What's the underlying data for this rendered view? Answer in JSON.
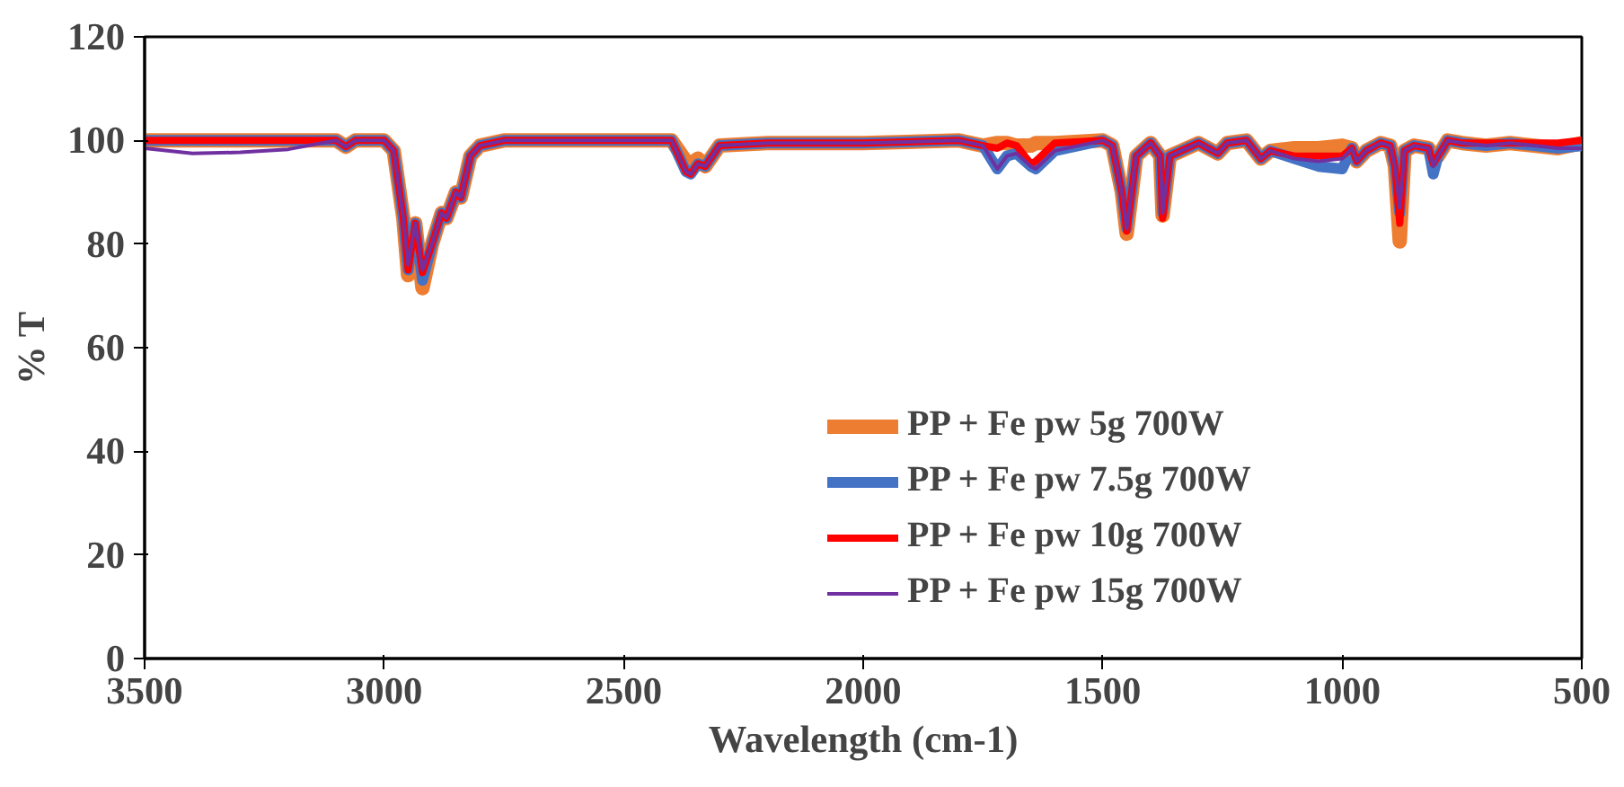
{
  "chart_data": {
    "type": "line",
    "xlabel": "Wavelength (cm-1)",
    "ylabel": "% T",
    "x": [
      3500,
      3400,
      3300,
      3200,
      3100,
      3080,
      3060,
      3000,
      2980,
      2960,
      2950,
      2935,
      2920,
      2900,
      2880,
      2870,
      2850,
      2840,
      2820,
      2800,
      2750,
      2700,
      2500,
      2400,
      2370,
      2360,
      2345,
      2330,
      2300,
      2200,
      2000,
      1800,
      1750,
      1720,
      1700,
      1680,
      1650,
      1640,
      1600,
      1500,
      1480,
      1460,
      1450,
      1430,
      1400,
      1380,
      1375,
      1360,
      1300,
      1260,
      1240,
      1200,
      1170,
      1150,
      1100,
      1050,
      1000,
      980,
      970,
      950,
      920,
      900,
      890,
      880,
      870,
      850,
      820,
      810,
      800,
      780,
      750,
      700,
      650,
      600,
      550,
      500
    ],
    "series": [
      {
        "name": "PP + Fe pw 5g 700W",
        "color": "#ed7d31",
        "values": [
          100,
          100,
          100,
          100,
          100,
          98.8,
          100,
          100,
          98,
          85,
          74,
          84,
          71.5,
          80,
          86,
          85,
          90,
          89,
          97,
          99,
          100,
          100,
          100,
          100,
          96,
          95.5,
          96.5,
          95,
          99,
          99.5,
          99.5,
          100,
          99,
          99.5,
          99.5,
          99,
          99,
          99.5,
          99.5,
          100,
          99,
          90,
          82,
          97,
          99.5,
          97,
          85.5,
          97,
          99.5,
          97.5,
          99.5,
          100,
          96.5,
          98,
          98.5,
          98.5,
          99,
          98.5,
          96,
          98,
          99.5,
          99,
          95,
          80.5,
          98,
          99,
          98.5,
          97,
          97,
          100,
          99.5,
          99,
          99.5,
          99,
          98.5,
          99.5
        ]
      },
      {
        "name": "PP + Fe pw 7.5g 700W",
        "color": "#4472c4",
        "values": [
          100,
          100,
          100,
          100,
          100,
          98.8,
          100,
          100,
          98,
          85,
          75,
          84,
          73,
          80,
          86,
          85,
          90,
          89,
          97,
          99,
          100,
          100,
          100,
          100,
          94,
          93.5,
          95.5,
          95,
          99,
          99.5,
          99.5,
          100,
          99,
          94.5,
          97,
          97.5,
          95,
          94.5,
          98,
          100,
          99,
          90,
          83,
          97,
          99.5,
          97,
          86,
          97,
          99.5,
          97.5,
          99.5,
          100,
          96.5,
          98,
          96.5,
          95,
          94.5,
          98.5,
          96,
          98,
          99.5,
          99,
          95,
          86,
          98,
          99,
          98.5,
          93.5,
          97,
          100,
          99.5,
          99,
          99.5,
          99,
          98.5,
          99
        ]
      },
      {
        "name": "PP + Fe pw 10g 700W",
        "color": "#ff0000",
        "values": [
          100,
          100,
          100,
          100,
          100,
          98.8,
          100,
          100,
          98,
          85,
          75,
          84,
          74.5,
          80,
          86,
          85,
          90,
          89,
          97,
          99,
          100,
          100,
          100,
          100,
          94,
          93.5,
          95.5,
          95,
          99,
          99.5,
          99.5,
          100,
          99,
          98.5,
          99.5,
          99,
          95.5,
          96,
          99.5,
          100,
          99,
          90,
          82.5,
          97,
          99.5,
          97,
          85,
          97,
          99.5,
          97.5,
          99.5,
          100,
          96.5,
          98,
          97,
          97,
          97,
          98.5,
          96,
          98,
          99.5,
          99,
          95,
          84,
          98,
          99,
          98.5,
          95.5,
          97,
          100,
          99.5,
          99.5,
          99.5,
          99.5,
          99.5,
          100
        ]
      },
      {
        "name": "PP + Fe pw 15g 700W",
        "color": "#7030a0",
        "values": [
          98.5,
          97.5,
          97.7,
          98.3,
          100,
          98.8,
          100,
          100,
          98,
          85,
          76,
          84,
          75,
          80,
          86,
          85,
          90,
          89,
          97,
          99,
          100,
          100,
          100,
          100,
          94,
          93.5,
          95.5,
          95,
          99,
          99.5,
          99.5,
          100,
          99,
          94.5,
          97,
          97.5,
          95,
          94.5,
          98,
          100,
          99,
          90,
          83,
          97,
          99.5,
          97,
          86,
          97,
          99.5,
          97.5,
          99.5,
          100,
          96.5,
          98,
          96.5,
          96,
          96.5,
          98.5,
          96,
          98,
          99.5,
          99,
          95,
          87,
          98,
          99,
          98.5,
          95,
          97,
          100,
          99.5,
          99,
          99.5,
          99,
          98.5,
          98.5
        ]
      }
    ],
    "xlim": [
      3500,
      500
    ],
    "ylim": [
      0,
      120
    ],
    "xticks": [
      3500,
      3000,
      2500,
      2000,
      1500,
      1000,
      500
    ],
    "yticks": [
      0,
      20,
      40,
      60,
      80,
      100,
      120
    ],
    "grid": false,
    "legend": "right",
    "line_style": "solid",
    "marker": "none"
  }
}
